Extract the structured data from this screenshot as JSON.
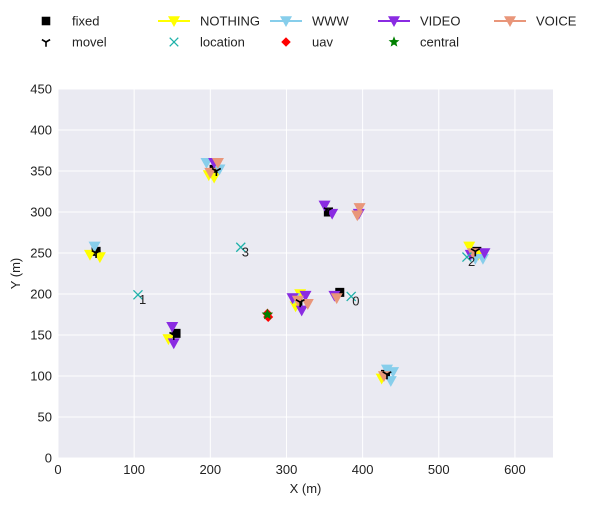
{
  "chart_data": {
    "type": "scatter",
    "title": "",
    "xlabel": "X (m)",
    "ylabel": "Y (m)",
    "xlim": [
      0,
      650
    ],
    "ylim": [
      0,
      450
    ],
    "xticks": [
      0,
      100,
      200,
      300,
      400,
      500,
      600
    ],
    "yticks": [
      0,
      50,
      100,
      150,
      200,
      250,
      300,
      350,
      400,
      450
    ],
    "grid": true,
    "legend_position": "top",
    "colors": {
      "background": "#eaeaf2",
      "grid": "#ffffff",
      "fixed": "#000000",
      "nothing": "#ffff00",
      "www": "#87ceeb",
      "video": "#8a2be2",
      "voice": "#e9967a",
      "movel": "#000000",
      "location": "#20b2aa",
      "uav": "#ff0000",
      "central": "#008000"
    },
    "legend": [
      {
        "key": "fixed",
        "label": "fixed",
        "marker": "square"
      },
      {
        "key": "nothing",
        "label": "NOTHING",
        "marker": "tri-down-line"
      },
      {
        "key": "www",
        "label": "WWW",
        "marker": "tri-down-line"
      },
      {
        "key": "video",
        "label": "VIDEO",
        "marker": "tri-down-line"
      },
      {
        "key": "voice",
        "label": "VOICE",
        "marker": "tri-down-line"
      },
      {
        "key": "movel",
        "label": "movel",
        "marker": "tri-y"
      },
      {
        "key": "location",
        "label": "location",
        "marker": "x"
      },
      {
        "key": "uav",
        "label": "uav",
        "marker": "diamond"
      },
      {
        "key": "central",
        "label": "central",
        "marker": "star"
      }
    ],
    "series": [
      {
        "key": "fixed",
        "points": [
          [
            50,
            252
          ],
          [
            155,
            152
          ],
          [
            205,
            352
          ],
          [
            355,
            300
          ],
          [
            370,
            202
          ],
          [
            430,
            102
          ],
          [
            550,
            252
          ],
          [
            315,
            190
          ]
        ]
      },
      {
        "key": "nothing",
        "points": [
          [
            42,
            248
          ],
          [
            55,
            245
          ],
          [
            145,
            145
          ],
          [
            198,
            345
          ],
          [
            205,
            342
          ],
          [
            312,
            185
          ],
          [
            318,
            200
          ],
          [
            425,
            97
          ],
          [
            540,
            258
          ],
          [
            552,
            248
          ]
        ]
      },
      {
        "key": "www",
        "points": [
          [
            48,
            258
          ],
          [
            195,
            360
          ],
          [
            212,
            352
          ],
          [
            310,
            195
          ],
          [
            432,
            108
          ],
          [
            440,
            105
          ],
          [
            437,
            94
          ],
          [
            548,
            243
          ],
          [
            558,
            243
          ]
        ]
      },
      {
        "key": "video",
        "points": [
          [
            150,
            160
          ],
          [
            152,
            140
          ],
          [
            205,
            360
          ],
          [
            350,
            308
          ],
          [
            360,
            298
          ],
          [
            395,
            298
          ],
          [
            320,
            180
          ],
          [
            308,
            195
          ],
          [
            325,
            198
          ],
          [
            363,
            198
          ],
          [
            542,
            248
          ],
          [
            560,
            250
          ]
        ]
      },
      {
        "key": "voice",
        "points": [
          [
            200,
            348
          ],
          [
            210,
            360
          ],
          [
            393,
            296
          ],
          [
            396,
            305
          ],
          [
            315,
            192
          ],
          [
            328,
            188
          ],
          [
            366,
            195
          ],
          [
            428,
            100
          ],
          [
            545,
            250
          ]
        ]
      },
      {
        "key": "movel",
        "points": [
          [
            50,
            250
          ],
          [
            152,
            150
          ],
          [
            208,
            350
          ],
          [
            355,
            302
          ],
          [
            318,
            190
          ],
          [
            432,
            102
          ],
          [
            548,
            252
          ]
        ]
      },
      {
        "key": "location",
        "points": [
          [
            105,
            199
          ],
          [
            240,
            257
          ],
          [
            385,
            197
          ],
          [
            537,
            245
          ]
        ]
      },
      {
        "key": "uav",
        "points": [
          [
            275,
            176
          ],
          [
            276,
            172
          ]
        ]
      },
      {
        "key": "central",
        "points": [
          [
            275,
            175
          ]
        ]
      }
    ],
    "annotations": [
      {
        "text": "1",
        "x": 105,
        "y": 199
      },
      {
        "text": "3",
        "x": 240,
        "y": 257
      },
      {
        "text": "0",
        "x": 385,
        "y": 197
      },
      {
        "text": "2",
        "x": 537,
        "y": 245
      }
    ]
  }
}
